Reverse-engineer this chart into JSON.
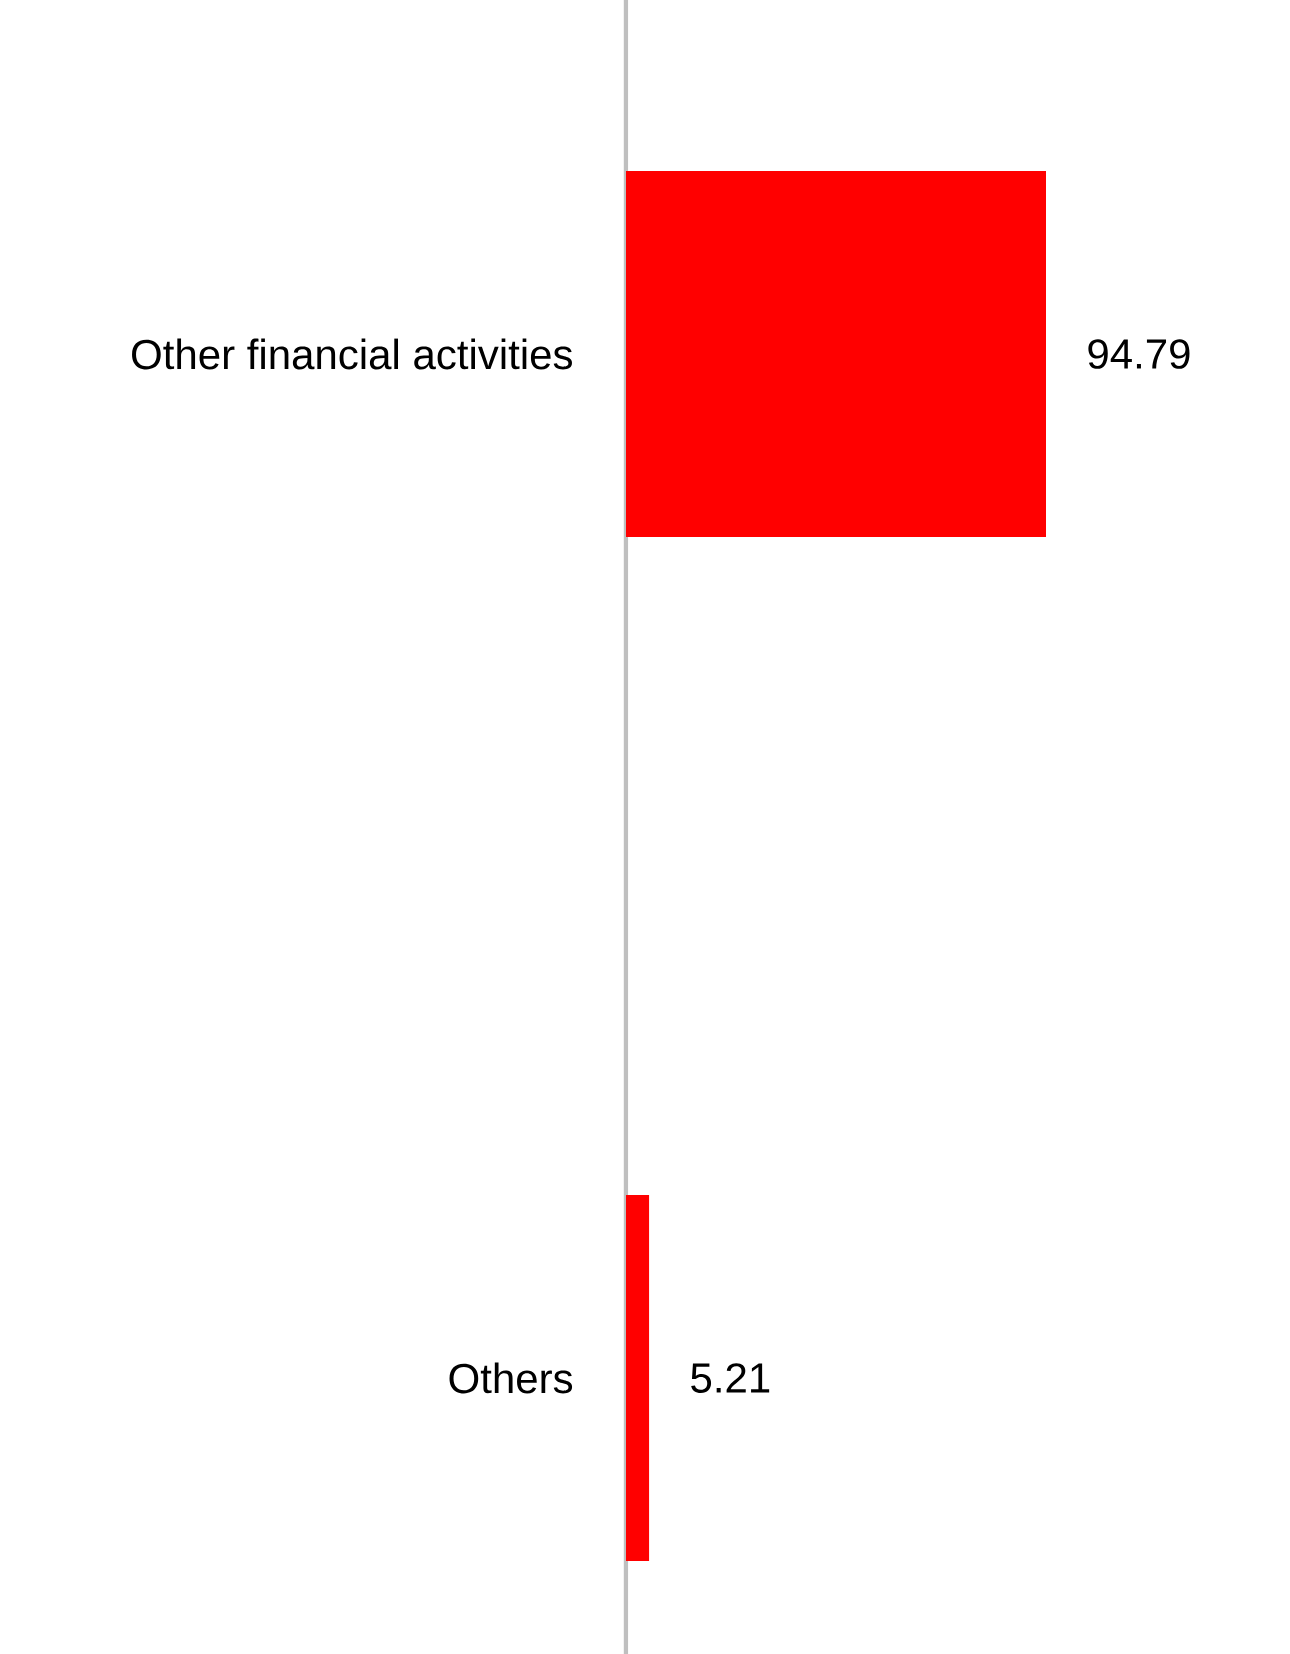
{
  "chart_data": {
    "type": "bar",
    "orientation": "horizontal",
    "categories": [
      "Other financial activities",
      "Others"
    ],
    "values": [
      94.79,
      5.21
    ],
    "color": "#ff0000",
    "data_labels": true,
    "tick_labels": "y"
  }
}
